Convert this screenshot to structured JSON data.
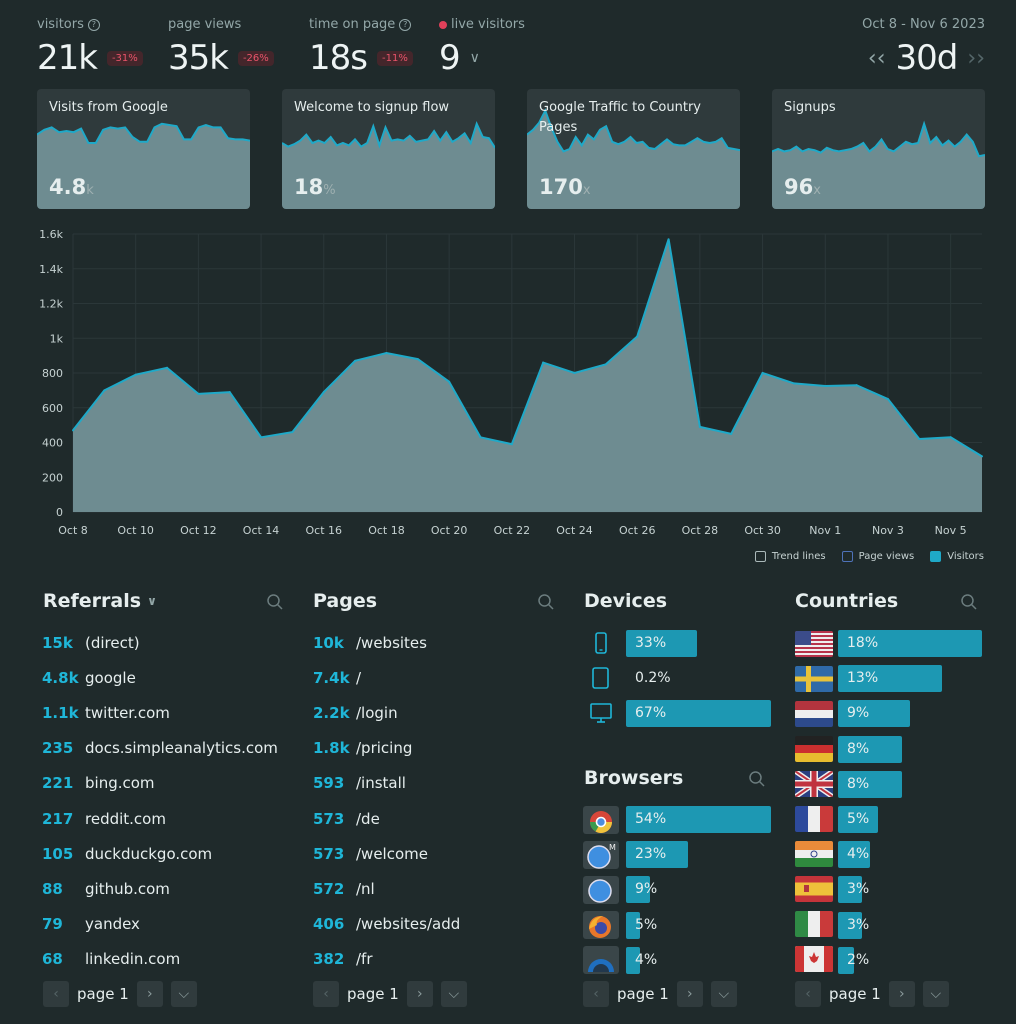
{
  "stats": {
    "visitors": {
      "label": "visitors",
      "value": "21k",
      "change": "-31%"
    },
    "pageviews": {
      "label": "page views",
      "value": "35k",
      "change": "-26%"
    },
    "time": {
      "label": "time on page",
      "value": "18s",
      "change": "-11%"
    },
    "live": {
      "label": "live visitors",
      "value": "9"
    },
    "range": {
      "label": "Oct 8 - Nov 6 2023",
      "value": "30d"
    }
  },
  "goals": [
    {
      "title": "Visits from Google",
      "value": "4.8",
      "suffix": "k"
    },
    {
      "title": "Welcome to signup flow",
      "value": "18",
      "suffix": "%"
    },
    {
      "title": "Google Traffic to Country Pages",
      "value": "170",
      "suffix": "x"
    },
    {
      "title": "Signups",
      "value": "96",
      "suffix": "x"
    }
  ],
  "goal_series": [
    [
      0.62,
      0.66,
      0.68,
      0.64,
      0.65,
      0.64,
      0.67,
      0.55,
      0.55,
      0.66,
      0.68,
      0.67,
      0.68,
      0.6,
      0.56,
      0.56,
      0.68,
      0.71,
      0.7,
      0.69,
      0.58,
      0.58,
      0.68,
      0.7,
      0.68,
      0.68,
      0.59,
      0.58,
      0.58,
      0.57
    ],
    [
      0.55,
      0.52,
      0.54,
      0.57,
      0.62,
      0.55,
      0.57,
      0.55,
      0.6,
      0.53,
      0.55,
      0.53,
      0.58,
      0.52,
      0.55,
      0.69,
      0.53,
      0.68,
      0.57,
      0.58,
      0.57,
      0.61,
      0.56,
      0.57,
      0.58,
      0.65,
      0.57,
      0.64,
      0.56,
      0.59,
      0.63,
      0.55,
      0.71,
      0.6,
      0.59,
      0.51
    ],
    [
      0.62,
      0.66,
      0.72,
      0.82,
      0.68,
      0.56,
      0.48,
      0.5,
      0.6,
      0.53,
      0.62,
      0.58,
      0.66,
      0.69,
      0.56,
      0.54,
      0.56,
      0.6,
      0.55,
      0.56,
      0.51,
      0.5,
      0.54,
      0.58,
      0.54,
      0.53,
      0.53,
      0.56,
      0.59,
      0.56,
      0.55,
      0.56,
      0.59,
      0.51,
      0.5,
      0.49
    ],
    [
      0.48,
      0.5,
      0.48,
      0.49,
      0.52,
      0.48,
      0.5,
      0.49,
      0.47,
      0.51,
      0.49,
      0.48,
      0.49,
      0.5,
      0.52,
      0.55,
      0.48,
      0.52,
      0.58,
      0.5,
      0.48,
      0.52,
      0.56,
      0.54,
      0.55,
      0.71,
      0.55,
      0.6,
      0.53,
      0.57,
      0.52,
      0.56,
      0.62,
      0.56,
      0.44,
      0.45
    ]
  ],
  "chart_data": {
    "type": "area",
    "title": "",
    "x": [
      "Oct 8",
      "Oct 9",
      "Oct 10",
      "Oct 11",
      "Oct 12",
      "Oct 13",
      "Oct 14",
      "Oct 15",
      "Oct 16",
      "Oct 17",
      "Oct 18",
      "Oct 19",
      "Oct 20",
      "Oct 21",
      "Oct 22",
      "Oct 23",
      "Oct 24",
      "Oct 25",
      "Oct 26",
      "Oct 27",
      "Oct 28",
      "Oct 29",
      "Oct 30",
      "Oct 31",
      "Nov 1",
      "Nov 2",
      "Nov 3",
      "Nov 4",
      "Nov 5",
      "Nov 6"
    ],
    "xticks": [
      "Oct 8",
      "Oct 10",
      "Oct 12",
      "Oct 14",
      "Oct 16",
      "Oct 18",
      "Oct 20",
      "Oct 22",
      "Oct 24",
      "Oct 26",
      "Oct 28",
      "Oct 30",
      "Nov 1",
      "Nov 3",
      "Nov 5"
    ],
    "yticks": [
      "0",
      "200",
      "400",
      "600",
      "800",
      "1k",
      "1.2k",
      "1.4k",
      "1.6k"
    ],
    "ylim": [
      0,
      1600
    ],
    "series": [
      {
        "name": "Visitors",
        "values": [
          470,
          700,
          790,
          830,
          680,
          690,
          430,
          460,
          690,
          870,
          915,
          880,
          750,
          430,
          390,
          860,
          800,
          850,
          1010,
          1570,
          490,
          450,
          800,
          740,
          725,
          730,
          650,
          420,
          430,
          320
        ]
      }
    ],
    "grid": true,
    "legend": [
      "Trend lines",
      "Page views",
      "Visitors"
    ]
  },
  "referrals": {
    "title": "Referrals",
    "rows": [
      {
        "n": "15k",
        "t": "(direct)"
      },
      {
        "n": "4.8k",
        "t": "google"
      },
      {
        "n": "1.1k",
        "t": "twitter.com"
      },
      {
        "n": "235",
        "t": "docs.simpleanalytics.com"
      },
      {
        "n": "221",
        "t": "bing.com"
      },
      {
        "n": "217",
        "t": "reddit.com"
      },
      {
        "n": "105",
        "t": "duckduckgo.com"
      },
      {
        "n": "88",
        "t": "github.com"
      },
      {
        "n": "79",
        "t": "yandex"
      },
      {
        "n": "68",
        "t": "linkedin.com"
      }
    ],
    "page": "page 1"
  },
  "pages": {
    "title": "Pages",
    "rows": [
      {
        "n": "10k",
        "t": "/websites"
      },
      {
        "n": "7.4k",
        "t": "/"
      },
      {
        "n": "2.2k",
        "t": "/login"
      },
      {
        "n": "1.8k",
        "t": "/pricing"
      },
      {
        "n": "593",
        "t": "/install"
      },
      {
        "n": "573",
        "t": "/de"
      },
      {
        "n": "573",
        "t": "/welcome"
      },
      {
        "n": "572",
        "t": "/nl"
      },
      {
        "n": "406",
        "t": "/websites/add"
      },
      {
        "n": "382",
        "t": "/fr"
      }
    ],
    "page": "page 1"
  },
  "devices": {
    "title": "Devices",
    "rows": [
      {
        "icon": "mobile-icon",
        "label": "33%",
        "share": 0.33
      },
      {
        "icon": "tablet-icon",
        "label": "0.2%",
        "share": 0.002
      },
      {
        "icon": "desktop-icon",
        "label": "67%",
        "share": 0.67
      }
    ]
  },
  "browsers": {
    "title": "Browsers",
    "rows": [
      {
        "icon": "chrome-icon",
        "label": "54%",
        "share": 0.54
      },
      {
        "icon": "safari-mobile-icon",
        "label": "23%",
        "share": 0.23
      },
      {
        "icon": "safari-icon",
        "label": "9%",
        "share": 0.09
      },
      {
        "icon": "firefox-icon",
        "label": "5%",
        "share": 0.05
      },
      {
        "icon": "edge-icon",
        "label": "4%",
        "share": 0.04
      }
    ],
    "page": "page 1"
  },
  "countries": {
    "title": "Countries",
    "rows": [
      {
        "icon": "flag-us-icon",
        "label": "18%",
        "share": 0.18
      },
      {
        "icon": "flag-se-icon",
        "label": "13%",
        "share": 0.13
      },
      {
        "icon": "flag-nl-icon",
        "label": "9%",
        "share": 0.09
      },
      {
        "icon": "flag-de-icon",
        "label": "8%",
        "share": 0.08
      },
      {
        "icon": "flag-gb-icon",
        "label": "8%",
        "share": 0.08
      },
      {
        "icon": "flag-fr-icon",
        "label": "5%",
        "share": 0.05
      },
      {
        "icon": "flag-in-icon",
        "label": "4%",
        "share": 0.04
      },
      {
        "icon": "flag-es-icon",
        "label": "3%",
        "share": 0.03
      },
      {
        "icon": "flag-it-icon",
        "label": "3%",
        "share": 0.03
      },
      {
        "icon": "flag-ca-icon",
        "label": "2%",
        "share": 0.02
      }
    ],
    "page": "page 1"
  },
  "colors": {
    "accent": "#1fb6d8",
    "bar": "#1d98b3",
    "area": "#6e8c91",
    "line": "#1fa9c8",
    "negative": "#e9546a"
  }
}
